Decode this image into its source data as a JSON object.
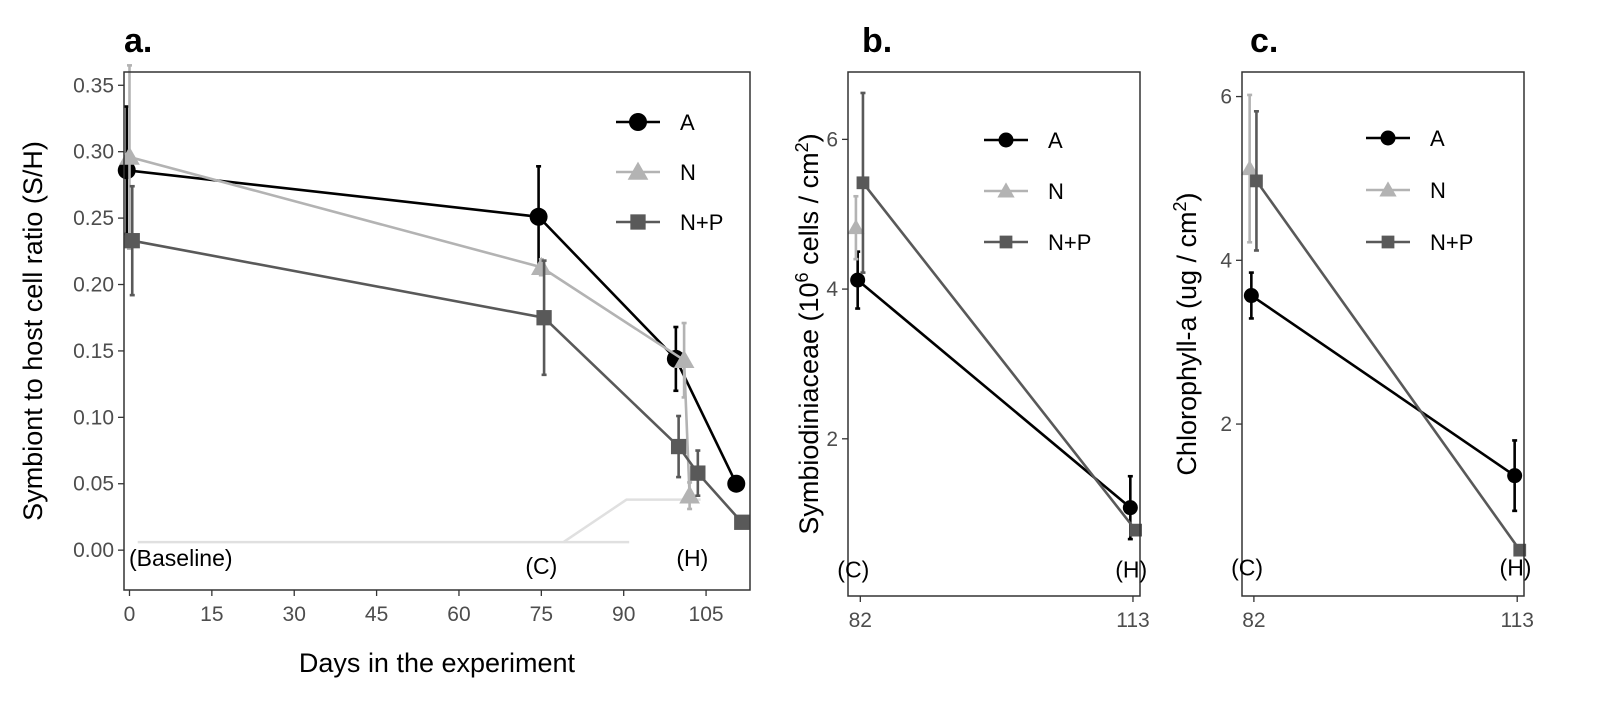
{
  "chart_data": [
    {
      "type": "line",
      "panel": "a.",
      "xlabel": "Days in the experiment",
      "ylabel": "Symbiont to host cell ratio (S/H)",
      "xlim": [
        -1,
        113
      ],
      "ylim": [
        -0.03,
        0.36
      ],
      "xticks": [
        0,
        15,
        30,
        45,
        60,
        75,
        90,
        105
      ],
      "xtick_labels": [
        "0",
        "15",
        "30",
        "45",
        "60",
        "75",
        "90",
        "105"
      ],
      "yticks": [
        0,
        0.05,
        0.1,
        0.15,
        0.2,
        0.25,
        0.3,
        0.35
      ],
      "ytick_labels": [
        "0.00",
        "0.05",
        "0.10",
        "0.15",
        "0.20",
        "0.25",
        "0.30",
        "0.35"
      ],
      "legend": "top-right",
      "annotations": [
        {
          "text": "(Baseline)",
          "x": 0,
          "y": -0.012
        },
        {
          "text": "(C)",
          "x": 75,
          "y": -0.018
        },
        {
          "text": "(H)",
          "x": 102.5,
          "y": -0.012
        }
      ],
      "series": [
        {
          "name": "A",
          "marker": "circle",
          "color": "#000000",
          "x": [
            -0.5,
            74.5,
            99.5,
            110.5
          ],
          "y": [
            0.286,
            0.251,
            0.144,
            0.05
          ],
          "err": [
            0.048,
            0.038,
            0.024,
            0
          ]
        },
        {
          "name": "N",
          "marker": "triangle",
          "color": "#b3b3b3",
          "x": [
            0,
            75,
            101,
            102
          ],
          "y": [
            0.296,
            0.213,
            0.143,
            0.041
          ],
          "err": [
            0.069,
            0.006,
            0.028,
            0.01
          ]
        },
        {
          "name": "N+P",
          "marker": "square",
          "color": "#595959",
          "x": [
            0.5,
            75.5,
            100,
            103.5,
            111.5
          ],
          "y": [
            0.233,
            0.175,
            0.078,
            0.058,
            0.021
          ],
          "err": [
            0.041,
            0.043,
            0.023,
            0.017,
            0
          ]
        }
      ]
    },
    {
      "type": "line",
      "panel": "b.",
      "xlabel": "",
      "ylabel": "Symbiodiniaceae (10^6 cells / cm^2)",
      "ylabel_parts": [
        "Symbiodiniaceae (10",
        "6",
        " cells / cm",
        "2",
        ")"
      ],
      "xlim": [
        80.6,
        113.8
      ],
      "ylim": [
        -0.1,
        6.9
      ],
      "xticks": [
        82,
        113
      ],
      "xtick_labels": [
        "82",
        "113"
      ],
      "yticks": [
        2,
        4,
        6
      ],
      "ytick_labels": [
        "2",
        "4",
        "6"
      ],
      "legend": "top-right",
      "annotations": [
        {
          "text": "(C)",
          "x": 81.2,
          "y": 0.15
        },
        {
          "text": "(H)",
          "x": 112.8,
          "y": 0.15
        }
      ],
      "series": [
        {
          "name": "A",
          "marker": "circle",
          "color": "#000000",
          "x": [
            81.7,
            112.7
          ],
          "y": [
            4.12,
            1.08
          ],
          "err": [
            0.38,
            0.42
          ]
        },
        {
          "name": "N",
          "marker": "triangle",
          "color": "#b3b3b3",
          "x": [
            81.5
          ],
          "y": [
            4.82
          ],
          "err": [
            0.42
          ]
        },
        {
          "name": "N+P",
          "marker": "square",
          "color": "#595959",
          "x": [
            82.3,
            113.3
          ],
          "y": [
            5.42,
            0.78
          ],
          "err": [
            1.2,
            0
          ]
        }
      ]
    },
    {
      "type": "line",
      "panel": "c.",
      "xlabel": "",
      "ylabel": "Chlorophyll-a (ug / cm^2)",
      "ylabel_parts": [
        "Chlorophyll-a (ug / cm",
        "2",
        ")",
        "",
        ""
      ],
      "xlim": [
        80.6,
        113.8
      ],
      "ylim": [
        -0.1,
        6.3
      ],
      "xticks": [
        82,
        113
      ],
      "xtick_labels": [
        "82",
        "113"
      ],
      "yticks": [
        2,
        4,
        6
      ],
      "ytick_labels": [
        "2",
        "4",
        "6"
      ],
      "legend": "top-right",
      "annotations": [
        {
          "text": "(C)",
          "x": 81.2,
          "y": 0.15
        },
        {
          "text": "(H)",
          "x": 112.8,
          "y": 0.15
        }
      ],
      "series": [
        {
          "name": "A",
          "marker": "circle",
          "color": "#000000",
          "x": [
            81.7,
            112.7
          ],
          "y": [
            3.57,
            1.37
          ],
          "err": [
            0.28,
            0.43
          ]
        },
        {
          "name": "N",
          "marker": "triangle",
          "color": "#b3b3b3",
          "x": [
            81.5
          ],
          "y": [
            5.12
          ],
          "err": [
            0.9
          ]
        },
        {
          "name": "N+P",
          "marker": "square",
          "color": "#595959",
          "x": [
            82.3,
            113.3
          ],
          "y": [
            4.97,
            0.46
          ],
          "err": [
            0.85,
            0
          ]
        }
      ]
    }
  ]
}
